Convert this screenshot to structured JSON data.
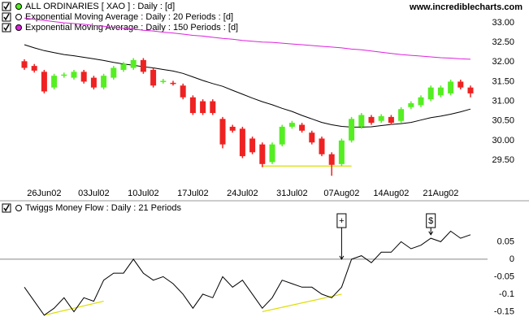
{
  "chart_data": [
    {
      "type": "candlestick",
      "title": "ALL ORDINARIES  [ XAO ] : Daily : [d]",
      "source": "www.incrediblecharts.com",
      "categories": [
        null,
        null,
        "26Jun02",
        null,
        null,
        null,
        null,
        "03Jul02",
        null,
        null,
        null,
        null,
        "10Jul02",
        null,
        null,
        null,
        null,
        "17Jul02",
        null,
        null,
        null,
        null,
        "24Jul02",
        null,
        null,
        null,
        null,
        "31Jul02",
        null,
        null,
        null,
        null,
        "07Aug02",
        null,
        null,
        null,
        null,
        "14Aug02",
        null,
        null,
        null,
        null,
        "21Aug02",
        null,
        null,
        null
      ],
      "open": [
        32.02,
        31.9,
        31.75,
        31.35,
        31.65,
        31.6,
        31.75,
        31.6,
        31.35,
        31.6,
        31.8,
        31.85,
        32.05,
        31.8,
        31.5,
        31.47,
        31.4,
        31.1,
        31.0,
        31.0,
        30.55,
        30.35,
        30.3,
        30.05,
        29.9,
        29.45,
        29.9,
        30.35,
        30.4,
        30.2,
        30.05,
        29.65,
        29.4,
        30.0,
        30.35,
        30.6,
        30.5,
        30.6,
        30.5,
        30.85,
        30.9,
        31.05,
        31.15,
        31.2,
        31.5,
        31.35
      ],
      "high": [
        32.07,
        31.95,
        31.8,
        31.7,
        31.73,
        31.8,
        31.8,
        31.65,
        31.7,
        31.9,
        32.0,
        32.1,
        32.1,
        31.85,
        31.57,
        31.52,
        31.45,
        31.15,
        31.05,
        31.05,
        30.6,
        30.4,
        30.35,
        30.1,
        29.95,
        29.95,
        30.4,
        30.5,
        30.45,
        30.25,
        30.1,
        29.7,
        30.05,
        30.6,
        30.7,
        30.65,
        30.67,
        30.65,
        30.85,
        31.0,
        31.15,
        31.4,
        31.4,
        31.55,
        31.55,
        31.4
      ],
      "low": [
        31.8,
        31.73,
        31.2,
        31.3,
        31.6,
        31.55,
        31.45,
        31.3,
        31.3,
        31.55,
        31.75,
        31.8,
        31.7,
        31.35,
        31.45,
        31.4,
        31.05,
        30.65,
        30.65,
        30.65,
        29.8,
        30.2,
        29.55,
        29.65,
        29.32,
        29.4,
        29.85,
        30.3,
        30.2,
        29.9,
        29.6,
        29.1,
        29.35,
        29.95,
        30.3,
        30.4,
        30.45,
        30.4,
        30.45,
        30.8,
        30.85,
        31.0,
        31.1,
        31.15,
        31.3,
        31.1
      ],
      "close": [
        31.85,
        31.78,
        31.25,
        31.65,
        31.68,
        31.75,
        31.5,
        31.35,
        31.65,
        31.85,
        31.95,
        32.05,
        31.75,
        31.4,
        31.52,
        31.45,
        31.1,
        30.7,
        30.7,
        30.7,
        29.9,
        30.25,
        29.6,
        29.7,
        29.4,
        29.9,
        30.35,
        30.45,
        30.25,
        29.95,
        29.65,
        29.38,
        30.0,
        30.55,
        30.65,
        30.45,
        30.62,
        30.45,
        30.8,
        30.95,
        31.1,
        31.35,
        31.35,
        31.5,
        31.35,
        31.2
      ],
      "up_color": "#55ee22",
      "down_color": "#ee2222",
      "overlays": [
        {
          "name": "Exponential Moving Average : Daily : 20 Periods : [d]",
          "color": "#000000",
          "legend_color": "#ffffff",
          "values": [
            32.44,
            32.36,
            32.29,
            32.24,
            32.19,
            32.16,
            32.12,
            32.08,
            32.04,
            31.99,
            31.95,
            31.92,
            31.88,
            31.85,
            31.81,
            31.77,
            31.71,
            31.62,
            31.53,
            31.45,
            31.38,
            31.28,
            31.18,
            31.08,
            30.99,
            30.91,
            30.82,
            30.74,
            30.64,
            30.55,
            30.46,
            30.4,
            30.36,
            30.34,
            30.34,
            30.35,
            30.38,
            30.41,
            30.43,
            30.46,
            30.52,
            30.58,
            30.62,
            30.67,
            30.73,
            30.8
          ]
        },
        {
          "name": "Exponential Moving Average : Daily : 150 Periods : [d]",
          "color": "#dd22dd",
          "legend_color": "#dd22dd",
          "values": [
            33.12,
            33.09,
            33.06,
            33.03,
            33.0,
            32.98,
            32.96,
            32.93,
            32.91,
            32.88,
            32.86,
            32.84,
            32.81,
            32.79,
            32.76,
            32.74,
            32.71,
            32.68,
            32.66,
            32.63,
            32.6,
            32.58,
            32.55,
            32.53,
            32.51,
            32.5,
            32.48,
            32.46,
            32.44,
            32.42,
            32.4,
            32.38,
            32.36,
            32.33,
            32.31,
            32.28,
            32.25,
            32.22,
            32.19,
            32.17,
            32.15,
            32.13,
            32.11,
            32.1,
            32.08,
            32.07
          ]
        }
      ],
      "trendlines": [
        {
          "x": [
            24,
            33
          ],
          "values": [
            29.35,
            29.35
          ],
          "color": "#dddd00"
        }
      ],
      "ylim": [
        28.92,
        33.58
      ],
      "yticks": [
        {
          "value": 33,
          "label": "33.00"
        },
        {
          "value": 32.5,
          "label": "32.50"
        },
        {
          "value": 32,
          "label": "32.00"
        },
        {
          "value": 31.5,
          "label": "31.50"
        },
        {
          "value": 31,
          "label": "31.00"
        },
        {
          "value": 30.5,
          "label": "30.50"
        },
        {
          "value": 30,
          "label": "30.00"
        },
        {
          "value": 29.5,
          "label": "29.50"
        }
      ]
    },
    {
      "type": "line",
      "title": "Twiggs Money Flow : Daily : 21 Periods",
      "color": "#000000",
      "values": [
        -0.08,
        -0.12,
        -0.16,
        -0.14,
        -0.11,
        -0.15,
        -0.11,
        -0.12,
        -0.06,
        -0.04,
        -0.04,
        0.0,
        -0.04,
        -0.06,
        -0.05,
        -0.07,
        -0.1,
        -0.14,
        -0.1,
        -0.11,
        -0.05,
        -0.08,
        -0.06,
        -0.1,
        -0.14,
        -0.11,
        -0.06,
        -0.07,
        -0.08,
        -0.08,
        -0.1,
        -0.11,
        -0.08,
        0.0,
        0.01,
        -0.01,
        0.02,
        0.02,
        0.05,
        0.03,
        0.04,
        0.06,
        0.05,
        0.08,
        0.06,
        0.07
      ],
      "trendlines": [
        {
          "x": [
            2,
            8
          ],
          "values": [
            -0.16,
            -0.12
          ],
          "color": "#dddd00"
        },
        {
          "x": [
            24,
            32
          ],
          "values": [
            -0.15,
            -0.1
          ],
          "color": "#dddd00"
        }
      ],
      "markers": [
        {
          "index": 32,
          "label": "+",
          "value": 0
        },
        {
          "index": 41,
          "label": "$",
          "value": 0.07
        }
      ],
      "ylim": [
        -0.2,
        0.16
      ],
      "yticks": [
        0.05,
        0,
        -0.05,
        -0.1,
        -0.15
      ]
    }
  ]
}
